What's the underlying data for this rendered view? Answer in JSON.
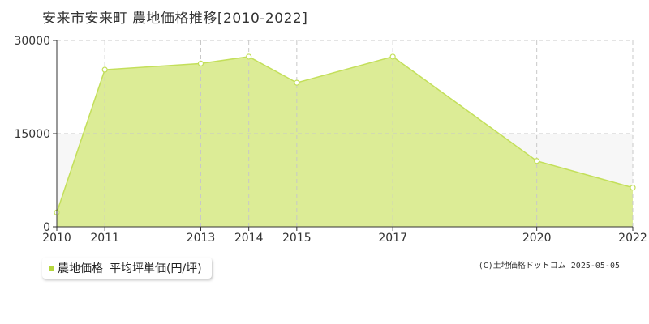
{
  "title": "安来市安来町 農地価格推移[2010-2022]",
  "legend": {
    "series_label": "農地価格",
    "unit_label": "平均坪単価(円/坪)",
    "swatch_color": "#b5d63d"
  },
  "credit": "(C)土地価格ドットコム 2025-05-05",
  "colors": {
    "fill": "#dcec96",
    "line": "#c3df5a",
    "band": "#f7f7f7",
    "grid": "#c8c8c8",
    "axis": "#333333"
  },
  "chart_data": {
    "type": "area",
    "x": [
      2010,
      2011,
      2013,
      2014,
      2015,
      2017,
      2020,
      2022
    ],
    "x_tick_labels": [
      "2010",
      "2011",
      "2013",
      "2014",
      "2015",
      "2017",
      "2020",
      "2022"
    ],
    "series": [
      {
        "values": [
          2300,
          25300,
          26300,
          27400,
          23200,
          27400,
          10600,
          6300
        ]
      }
    ],
    "ylim": [
      0,
      30000
    ],
    "y_ticks": [
      0,
      15000,
      30000
    ],
    "y_tick_labels": [
      "0",
      "15000",
      "30000"
    ],
    "grid": true,
    "legend_position": "bottom-left"
  }
}
